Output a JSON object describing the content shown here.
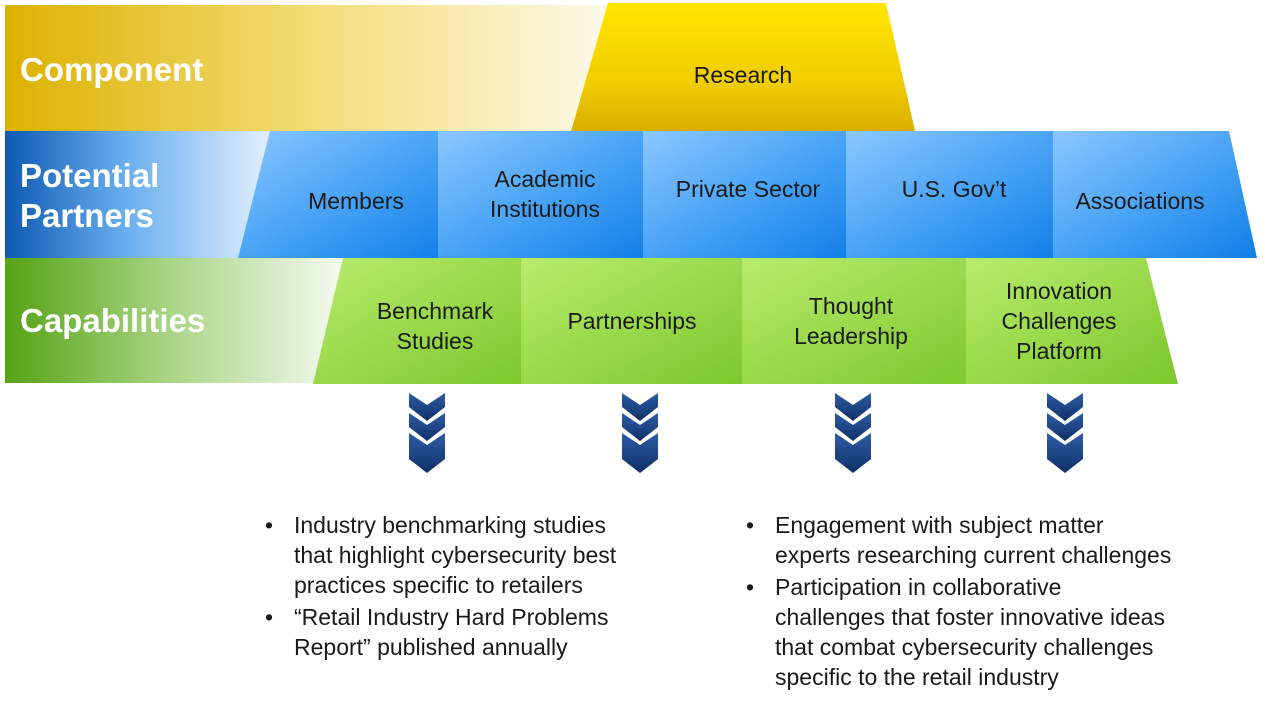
{
  "rows": {
    "component": {
      "label": "Component"
    },
    "partners": {
      "label_line1": "Potential",
      "label_line2": "Partners"
    },
    "capabilities": {
      "label": "Capabilities"
    }
  },
  "component_box": {
    "label": "Research"
  },
  "partners": [
    {
      "label_line1": "Members",
      "label_line2": ""
    },
    {
      "label_line1": "Academic",
      "label_line2": "Institutions"
    },
    {
      "label_line1": "Private Sector",
      "label_line2": ""
    },
    {
      "label_line1": "U.S. Gov’t",
      "label_line2": ""
    },
    {
      "label_line1": "Associations",
      "label_line2": ""
    }
  ],
  "capabilities": [
    {
      "lines": [
        "Benchmark",
        "Studies"
      ]
    },
    {
      "lines": [
        "Partnerships"
      ]
    },
    {
      "lines": [
        "Thought",
        "Leadership"
      ]
    },
    {
      "lines": [
        "Innovation",
        "Challenges",
        "Platform"
      ]
    }
  ],
  "bullets_left": [
    {
      "bullet": "•",
      "lines": [
        "Industry benchmarking studies",
        "that highlight cybersecurity best",
        "practices specific to retailers"
      ]
    },
    {
      "bullet": "•",
      "lines": [
        "“Retail Industry Hard Problems",
        "Report” published annually"
      ]
    }
  ],
  "bullets_right": [
    {
      "bullet": "•",
      "lines": [
        "Engagement with subject matter",
        "experts researching current challenges"
      ]
    },
    {
      "bullet": "•",
      "lines": [
        "Participation in collaborative",
        "challenges that foster innovative ideas",
        "that combat cybersecurity challenges",
        "specific to the retail industry"
      ]
    }
  ],
  "colors": {
    "gold": "#e9c100",
    "gold_dark": "#d4a800",
    "blue": "#3a97ec",
    "blue_dark": "#0b5fb8",
    "green": "#9bd94a",
    "green_dark": "#55a418",
    "navy": "#1d3f7a"
  },
  "icons": {
    "chevron": "chevron-down-triple-icon"
  }
}
